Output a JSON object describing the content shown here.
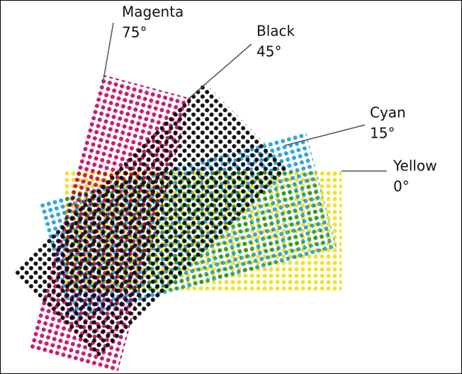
{
  "screens": [
    {
      "name": "Magenta",
      "angle": {
        "value": 75,
        "label": "75°"
      },
      "color": "#c81e6e"
    },
    {
      "name": "Black",
      "angle": {
        "value": 45,
        "label": "45°"
      },
      "color": "#111111"
    },
    {
      "name": "Cyan",
      "angle": {
        "value": 15,
        "label": "15°"
      },
      "color": "#35a6dc"
    },
    {
      "name": "Yellow",
      "angle": {
        "value": 0,
        "label": "0°"
      },
      "color": "#f2e22c"
    }
  ]
}
